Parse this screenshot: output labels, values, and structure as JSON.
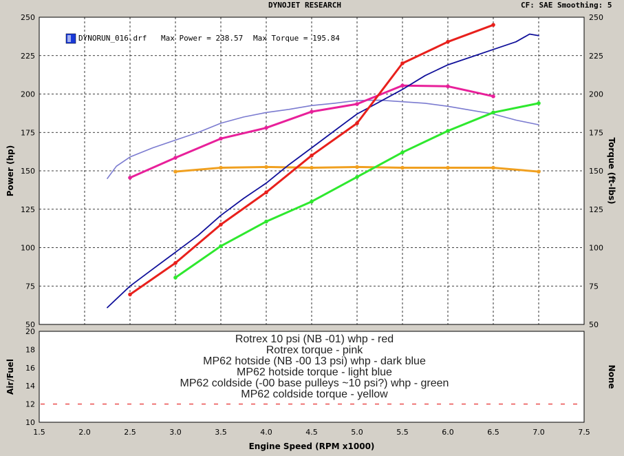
{
  "header": {
    "title": "DYNOJET RESEARCH",
    "settings": "CF: SAE  Smoothing: 5"
  },
  "run_legend": {
    "file": "DYNORUN_016.drf",
    "max_power": "Max Power = 238.57",
    "max_torque": "Max Torque = 195.84"
  },
  "colors": {
    "rotrex_whp": "#e8201c",
    "rotrex_torque": "#e8209a",
    "mp62_hot_whp": "#10109a",
    "mp62_hot_torque": "#7b7bd0",
    "mp62_cold_whp": "#2ee82e",
    "mp62_cold_torque": "#f0a020"
  },
  "chart_data": [
    {
      "type": "line",
      "xlabel": "",
      "ylabel": "Power (hp)",
      "ylabel_right": "Torque (ft-lbs)",
      "xlim": [
        1.5,
        7.5
      ],
      "ylim": [
        50,
        250
      ],
      "y_ticks": [
        50,
        75,
        100,
        125,
        150,
        175,
        200,
        225,
        250
      ],
      "grid": true,
      "series": [
        {
          "name": "Rotrex 10 psi (NB -01) whp - red",
          "key": "rotrex_whp",
          "markers": true,
          "x": [
            2.5,
            3.0,
            3.5,
            4.0,
            4.5,
            5.0,
            5.5,
            6.0,
            6.5
          ],
          "y": [
            69.5,
            90,
            115,
            136,
            160,
            181,
            220,
            234,
            245
          ]
        },
        {
          "name": "Rotrex torque - pink",
          "key": "rotrex_torque",
          "markers": true,
          "x": [
            2.5,
            3.0,
            3.5,
            4.0,
            4.5,
            5.0,
            5.5,
            6.0,
            6.5
          ],
          "y": [
            145.5,
            158.5,
            171,
            178,
            188.5,
            193.5,
            205.5,
            205,
            198.5
          ]
        },
        {
          "name": "MP62 hotside (NB -00 13 psi) whp - dark blue",
          "key": "mp62_hot_whp",
          "markers": false,
          "x": [
            2.25,
            2.5,
            2.75,
            3.0,
            3.25,
            3.5,
            3.75,
            4.0,
            4.25,
            4.5,
            4.75,
            5.0,
            5.25,
            5.5,
            5.75,
            6.0,
            6.25,
            6.5,
            6.75,
            6.9,
            7.0
          ],
          "y": [
            61,
            75,
            86,
            97,
            108,
            121,
            132,
            142,
            154,
            165,
            176,
            187,
            195,
            203,
            212,
            219,
            224,
            229,
            234,
            239,
            238
          ]
        },
        {
          "name": "MP62 hotside torque - light blue",
          "key": "mp62_hot_torque",
          "markers": false,
          "x": [
            2.25,
            2.35,
            2.5,
            2.75,
            3.0,
            3.25,
            3.5,
            3.75,
            4.0,
            4.25,
            4.5,
            4.75,
            5.0,
            5.25,
            5.5,
            5.75,
            6.0,
            6.25,
            6.5,
            6.75,
            7.0
          ],
          "y": [
            145,
            153,
            159,
            165,
            170,
            175,
            181,
            185,
            188,
            190,
            192.5,
            194,
            195.8,
            196,
            195,
            194,
            192,
            189.5,
            187,
            183,
            180
          ]
        },
        {
          "name": "MP62 coldside (-00 base pulleys ~10 psi?) whp - green",
          "key": "mp62_cold_whp",
          "markers": true,
          "x": [
            3.0,
            3.5,
            4.0,
            4.5,
            5.0,
            5.5,
            6.0,
            6.5,
            7.0
          ],
          "y": [
            80.5,
            101,
            117,
            130,
            146,
            162,
            176,
            188,
            194
          ]
        },
        {
          "name": "MP62 coldside torque - yellow",
          "key": "mp62_cold_torque",
          "markers": true,
          "x": [
            3.0,
            3.5,
            4.0,
            4.5,
            5.0,
            5.5,
            6.0,
            6.5,
            7.0
          ],
          "y": [
            149.5,
            152,
            152.5,
            152,
            152.5,
            152,
            152,
            152,
            149.5
          ]
        }
      ]
    },
    {
      "type": "line",
      "xlabel": "Engine Speed (RPM x1000)",
      "ylabel": "Air/Fuel",
      "ylabel_right": "None",
      "xlim": [
        1.5,
        7.5
      ],
      "ylim": [
        10,
        20
      ],
      "y_ticks": [
        10,
        12,
        14,
        16,
        18,
        20
      ],
      "x_ticks": [
        1.5,
        2.0,
        2.5,
        3.0,
        3.5,
        4.0,
        4.5,
        5.0,
        5.5,
        6.0,
        6.5,
        7.0,
        7.5
      ],
      "grid": false,
      "reference_line": 12,
      "legend_text": [
        "Rotrex 10 psi (NB -01) whp - red",
        "Rotrex torque - pink",
        "MP62 hotside (NB -00 13 psi) whp - dark blue",
        "MP62 hotside torque - light blue",
        "MP62 coldside (-00 base pulleys ~10 psi?) whp - green",
        "MP62 coldside torque - yellow"
      ]
    }
  ]
}
